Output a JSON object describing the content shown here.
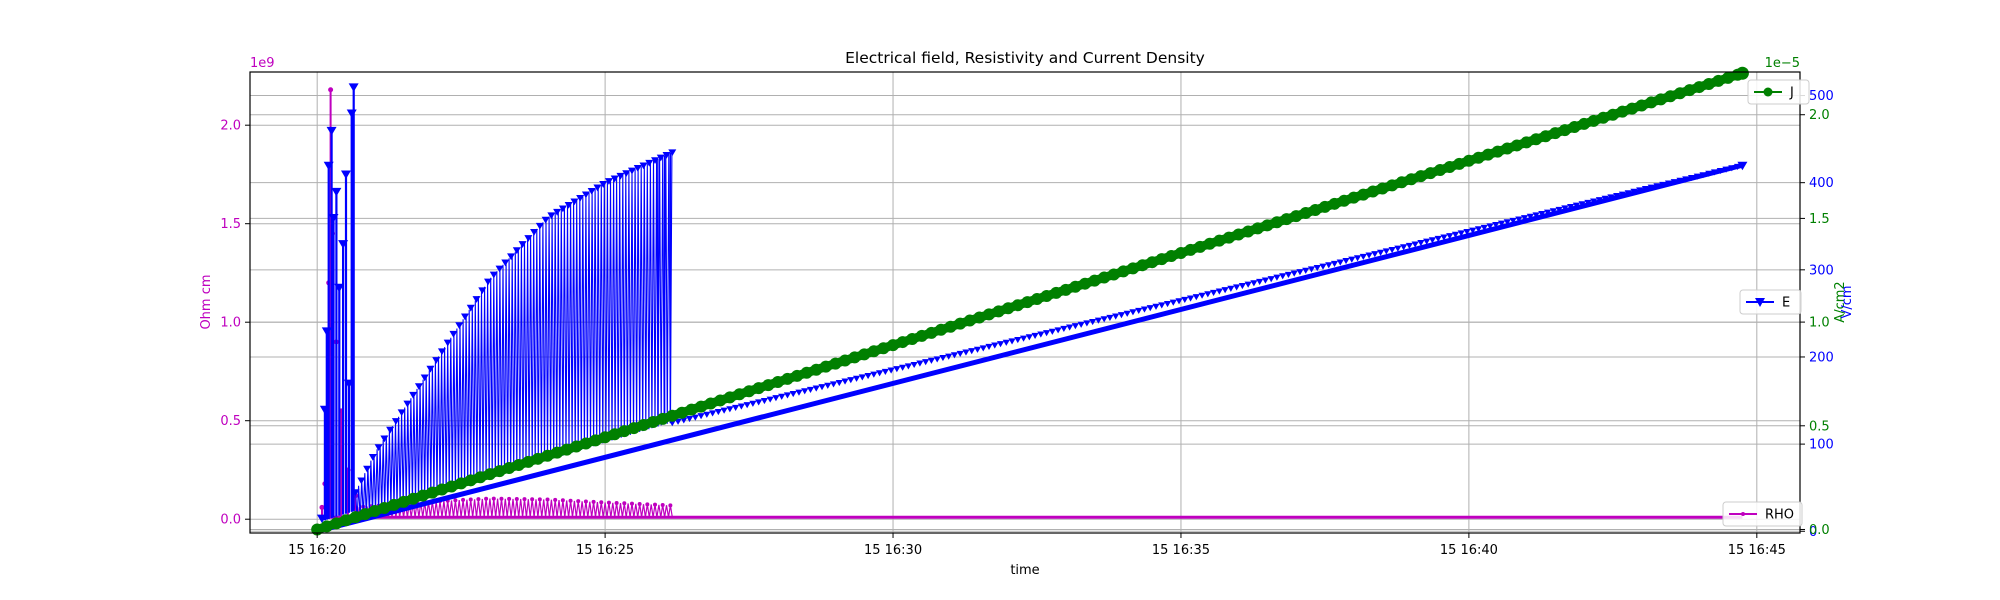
{
  "chart_data": {
    "type": "line",
    "title": "Electrical field, Resistivity and Current Density",
    "xlabel": "time",
    "x_ticks": [
      "15 16:20",
      "15 16:25",
      "15 16:30",
      "15 16:35",
      "15 16:40",
      "15 16:45"
    ],
    "x_range": [
      "16:18:50",
      "16:45:45"
    ],
    "grid": true,
    "axes": {
      "left": {
        "label": "Ohm cm",
        "color": "#bf00bf",
        "offset_text": "1e9",
        "ylim": [
          -0.07,
          2.27
        ],
        "ticks": [
          {
            "v": 0.0,
            "label": "0.0"
          },
          {
            "v": 0.5,
            "label": "0.5"
          },
          {
            "v": 1.0,
            "label": "1.0"
          },
          {
            "v": 1.5,
            "label": "1.5"
          },
          {
            "v": 2.0,
            "label": "2.0"
          }
        ]
      },
      "right_E": {
        "label": "V/cm",
        "color": "#0000ff",
        "ylim": [
          -2,
          527
        ],
        "ticks": [
          {
            "v": 0,
            "label": "0"
          },
          {
            "v": 100,
            "label": "100"
          },
          {
            "v": 200,
            "label": "200"
          },
          {
            "v": 300,
            "label": "300"
          },
          {
            "v": 400,
            "label": "400"
          },
          {
            "v": 500,
            "label": "500"
          }
        ]
      },
      "right_J": {
        "label": "A/cm2",
        "color": "#008000",
        "offset_text": "1e−5",
        "ylim": [
          -0.017,
          2.206
        ],
        "ticks": [
          {
            "v": 0.0,
            "label": "0.0"
          },
          {
            "v": 0.5,
            "label": "0.5"
          },
          {
            "v": 1.0,
            "label": "1.0"
          },
          {
            "v": 1.5,
            "label": "1.5"
          },
          {
            "v": 2.0,
            "label": "2.0"
          }
        ]
      }
    },
    "series": [
      {
        "name": "RHO",
        "axis": "left",
        "color": "#bf00bf",
        "marker": "point",
        "spikes": [
          {
            "t": "16:20:05",
            "v": 0.06
          },
          {
            "t": "16:20:08",
            "v": 0.18
          },
          {
            "t": "16:20:10",
            "v": 0.45
          },
          {
            "t": "16:20:12",
            "v": 1.2
          },
          {
            "t": "16:20:14",
            "v": 2.18
          },
          {
            "t": "16:20:16",
            "v": 1.45
          },
          {
            "t": "16:20:20",
            "v": 0.9
          },
          {
            "t": "16:20:25",
            "v": 0.55
          },
          {
            "t": "16:20:32",
            "v": 0.25
          },
          {
            "t": "16:20:40",
            "v": 0.12
          }
        ],
        "oscillation_envelope": [
          {
            "t": "16:20:40",
            "v": 0.06
          },
          {
            "t": "16:22:00",
            "v": 0.09
          },
          {
            "t": "16:23:00",
            "v": 0.105
          },
          {
            "t": "16:24:00",
            "v": 0.1
          },
          {
            "t": "16:25:00",
            "v": 0.085
          },
          {
            "t": "16:26:10",
            "v": 0.07
          }
        ],
        "baseline": 0.01,
        "end": "16:44:45"
      },
      {
        "name": "E",
        "axis": "right_E",
        "color": "#0000ff",
        "marker": "triangle_down",
        "spikes": [
          {
            "t": "16:20:05",
            "v": 15
          },
          {
            "t": "16:20:08",
            "v": 140
          },
          {
            "t": "16:20:10",
            "v": 230
          },
          {
            "t": "16:20:12",
            "v": 420
          },
          {
            "t": "16:20:15",
            "v": 460
          },
          {
            "t": "16:20:17",
            "v": 360
          },
          {
            "t": "16:20:20",
            "v": 390
          },
          {
            "t": "16:20:23",
            "v": 280
          },
          {
            "t": "16:20:27",
            "v": 330
          },
          {
            "t": "16:20:30",
            "v": 410
          },
          {
            "t": "16:20:33",
            "v": 170
          },
          {
            "t": "16:20:36",
            "v": 480
          },
          {
            "t": "16:20:38",
            "v": 510
          }
        ],
        "oscillation_upper": [
          {
            "t": "16:20:40",
            "v": 45
          },
          {
            "t": "16:21:00",
            "v": 90
          },
          {
            "t": "16:22:00",
            "v": 190
          },
          {
            "t": "16:23:00",
            "v": 290
          },
          {
            "t": "16:24:00",
            "v": 360
          },
          {
            "t": "16:25:00",
            "v": 400
          },
          {
            "t": "16:26:10",
            "v": 435
          }
        ],
        "trend": [
          {
            "t": "16:20:00",
            "v": 0
          },
          {
            "t": "16:26:00",
            "v": 122
          },
          {
            "t": "16:44:45",
            "v": 420
          }
        ],
        "end": "16:44:45"
      },
      {
        "name": "J",
        "axis": "right_J",
        "color": "#008000",
        "marker": "circle",
        "trend": [
          {
            "t": "16:20:00",
            "v": 0.0
          },
          {
            "t": "16:44:45",
            "v": 2.2
          }
        ],
        "end": "16:44:45"
      }
    ],
    "legends": [
      {
        "series": "J",
        "position": "upper-right"
      },
      {
        "series": "E",
        "position": "center-right"
      },
      {
        "series": "RHO",
        "position": "lower-right"
      }
    ]
  }
}
